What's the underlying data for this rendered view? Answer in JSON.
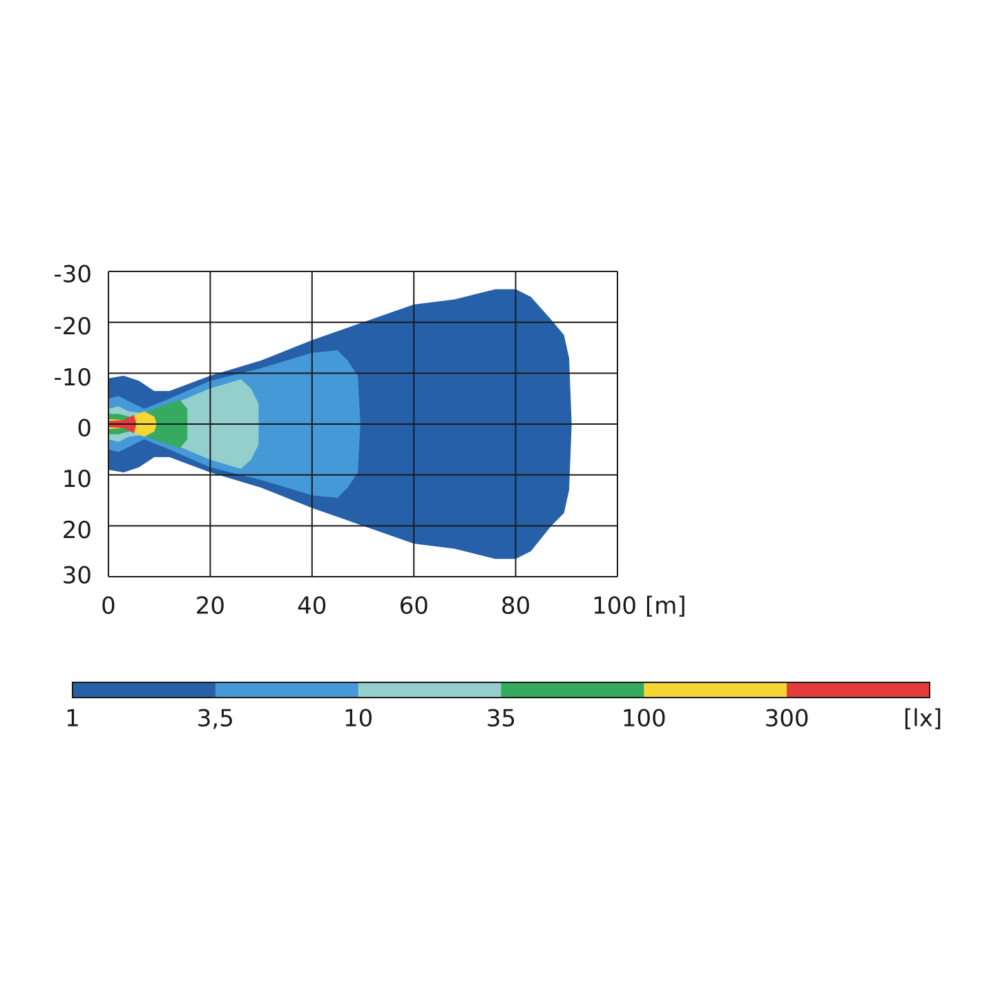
{
  "chart_data": {
    "type": "contour",
    "xlim": [
      0,
      100
    ],
    "ylim": [
      -30,
      30
    ],
    "y_inverted": true,
    "xticks": [
      0,
      20,
      40,
      60,
      80,
      100
    ],
    "yticks": [
      -30,
      -20,
      -10,
      0,
      10,
      20,
      30
    ],
    "x_unit": "[m]",
    "grid": true,
    "colorbar": {
      "levels": [
        1,
        {
          "value": 3.5,
          "label": "3,5"
        },
        10,
        35,
        100,
        300
      ],
      "colors": [
        "#2660a9",
        "#4499d6",
        "#94cfcd",
        "#34ab5e",
        "#f5d634",
        "#e43b3b"
      ],
      "unit": "[lx]"
    },
    "contours": [
      {
        "x": [
          0,
          3,
          6,
          9,
          12,
          20,
          30,
          40,
          50,
          60,
          68,
          76,
          80,
          83,
          87,
          89.5,
          90.5,
          91,
          90.5,
          89.5,
          87,
          83,
          80,
          76,
          68,
          60,
          50,
          40,
          30,
          20,
          12,
          9,
          6,
          3,
          0
        ],
        "y": [
          -9,
          -9.5,
          -8.5,
          -6.5,
          -6.5,
          -9.5,
          -12.5,
          -16.5,
          -20,
          -23.5,
          -24.5,
          -26.5,
          -26.5,
          -25,
          -20.5,
          -17.5,
          -13,
          0,
          13,
          17.5,
          20,
          25,
          26.5,
          26.5,
          24.5,
          23.5,
          20,
          16.5,
          12.5,
          9.5,
          6.5,
          6.5,
          8.5,
          9.5,
          9
        ]
      },
      {
        "x": [
          0,
          2,
          4,
          7,
          12,
          20,
          30,
          40,
          45,
          47,
          49,
          49.5,
          49,
          47,
          45,
          40,
          30,
          20,
          12,
          7,
          4,
          2,
          0
        ],
        "y": [
          -5,
          -5.5,
          -4.5,
          -3,
          -5,
          -8.5,
          -11,
          -14,
          -14.5,
          -12.5,
          -9.5,
          0,
          9.5,
          12.5,
          14.5,
          14,
          11,
          8.5,
          5,
          3,
          4.5,
          5.5,
          5
        ]
      },
      {
        "x": [
          0,
          2,
          4,
          8,
          14,
          20,
          26,
          28,
          29.5,
          29.5,
          28,
          26,
          20,
          14,
          8,
          4,
          2,
          0
        ],
        "y": [
          -3,
          -3.5,
          -2.5,
          -2,
          -4.5,
          -7,
          -8.8,
          -7,
          -4,
          4,
          7,
          8.8,
          7,
          4.5,
          2,
          2.5,
          3.5,
          3
        ]
      },
      {
        "x": [
          0,
          2,
          5,
          9,
          14,
          15.5,
          15.5,
          14,
          9,
          5,
          2,
          0
        ],
        "y": [
          -2,
          -2,
          -1.2,
          -3,
          -4.8,
          -3,
          3,
          4.8,
          3,
          1.2,
          2,
          2
        ]
      },
      {
        "x": [
          0,
          3,
          7,
          9,
          9.5,
          9,
          7,
          3,
          0
        ],
        "y": [
          -1,
          -0.8,
          -2.5,
          -1.5,
          0,
          1.5,
          2.5,
          0.8,
          1
        ]
      },
      {
        "x": [
          0,
          3,
          5,
          5.5,
          5,
          3,
          0
        ],
        "y": [
          -0.6,
          -0.8,
          -1.8,
          0,
          1.8,
          0.8,
          0.6
        ]
      }
    ]
  }
}
